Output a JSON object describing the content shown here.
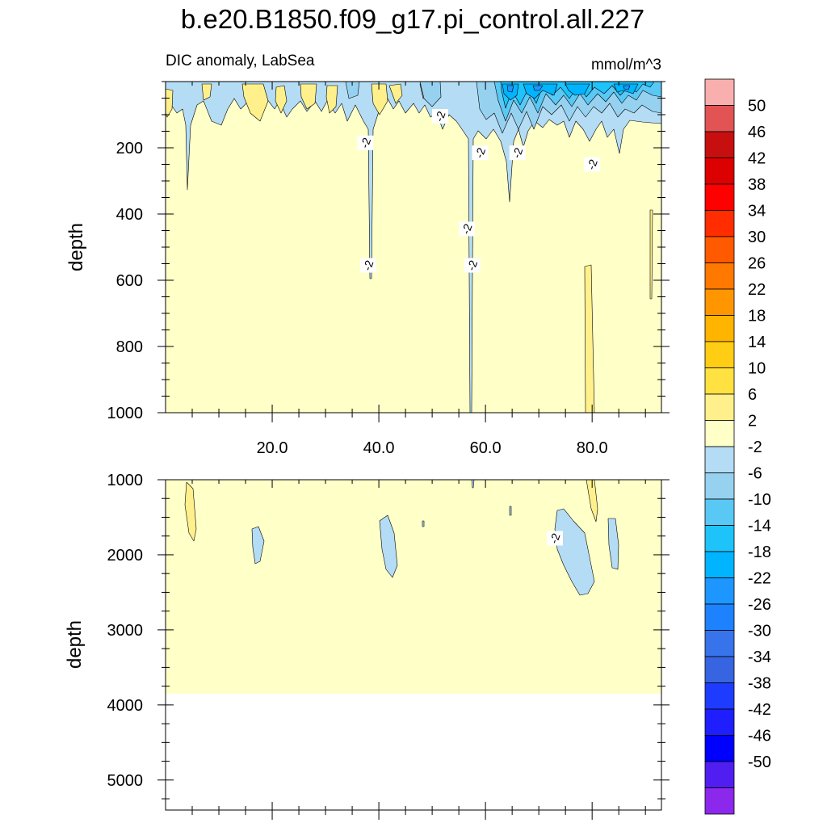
{
  "chart_data": {
    "type": "contour",
    "title": "b.e20.B1850.f09_g17.pi_control.all.227",
    "variable": "DIC anomaly, LabSea",
    "units": "mmol/m^3",
    "ylabel": "depth",
    "x_ticks": [
      "20.0",
      "40.0",
      "60.0",
      "80.0"
    ],
    "x_tick_values": [
      20,
      40,
      60,
      80
    ],
    "xlim": [
      0,
      93
    ],
    "upper_panel": {
      "ylim": [
        0,
        1000
      ],
      "y_ticks": [
        200,
        400,
        600,
        800,
        1000
      ],
      "contour_labels": [
        {
          "text": "-2",
          "x": 37.5,
          "depth": 185
        },
        {
          "text": "-2",
          "x": 51.5,
          "depth": 105
        },
        {
          "text": "-2",
          "x": 59.0,
          "depth": 215
        },
        {
          "text": "-2",
          "x": 66.0,
          "depth": 215
        },
        {
          "text": "-2",
          "x": 80.0,
          "depth": 250
        },
        {
          "text": "-2",
          "x": 56.5,
          "depth": 445
        },
        {
          "text": "-2",
          "x": 38.0,
          "depth": 555
        },
        {
          "text": "-2",
          "x": 57.5,
          "depth": 555
        }
      ]
    },
    "lower_panel": {
      "ylim": [
        1000,
        5400
      ],
      "y_ticks": [
        1000,
        2000,
        3000,
        4000,
        5000
      ],
      "data_bottom_depth": 3850,
      "contour_labels": [
        {
          "text": "-2",
          "x": 73.0,
          "depth": 1780
        }
      ]
    },
    "colorbar": {
      "labels": [
        "50",
        "46",
        "42",
        "38",
        "34",
        "30",
        "26",
        "22",
        "18",
        "14",
        "10",
        "6",
        "2",
        "-2",
        "-6",
        "-10",
        "-14",
        "-18",
        "-22",
        "-26",
        "-30",
        "-34",
        "-38",
        "-42",
        "-46",
        "-50"
      ],
      "colors": [
        "#f9afae",
        "#e25454",
        "#c80f0f",
        "#dc0000",
        "#ff0000",
        "#ff2d00",
        "#ff5a00",
        "#ff7800",
        "#ff9600",
        "#ffb400",
        "#ffcd14",
        "#ffe141",
        "#fff08c",
        "#ffffc8",
        "#b4dcf5",
        "#96d2f0",
        "#5ac8f5",
        "#1ec3fa",
        "#00b4ff",
        "#1e96ff",
        "#1e82ff",
        "#3773eb",
        "#3764e1",
        "#1e3cff",
        "#1e1eff",
        "#0000ff",
        "#501ef0",
        "#8c28eb"
      ]
    },
    "fill_colors": {
      "background": "#ffffc8",
      "neg2": "#b4dcf5",
      "neg6": "#96d2f0",
      "neg10": "#5ac8f5",
      "neg14": "#1ec3fa",
      "neg18": "#00b4ff",
      "neg22": "#1e96ff",
      "pos2": "#fff08c"
    }
  }
}
